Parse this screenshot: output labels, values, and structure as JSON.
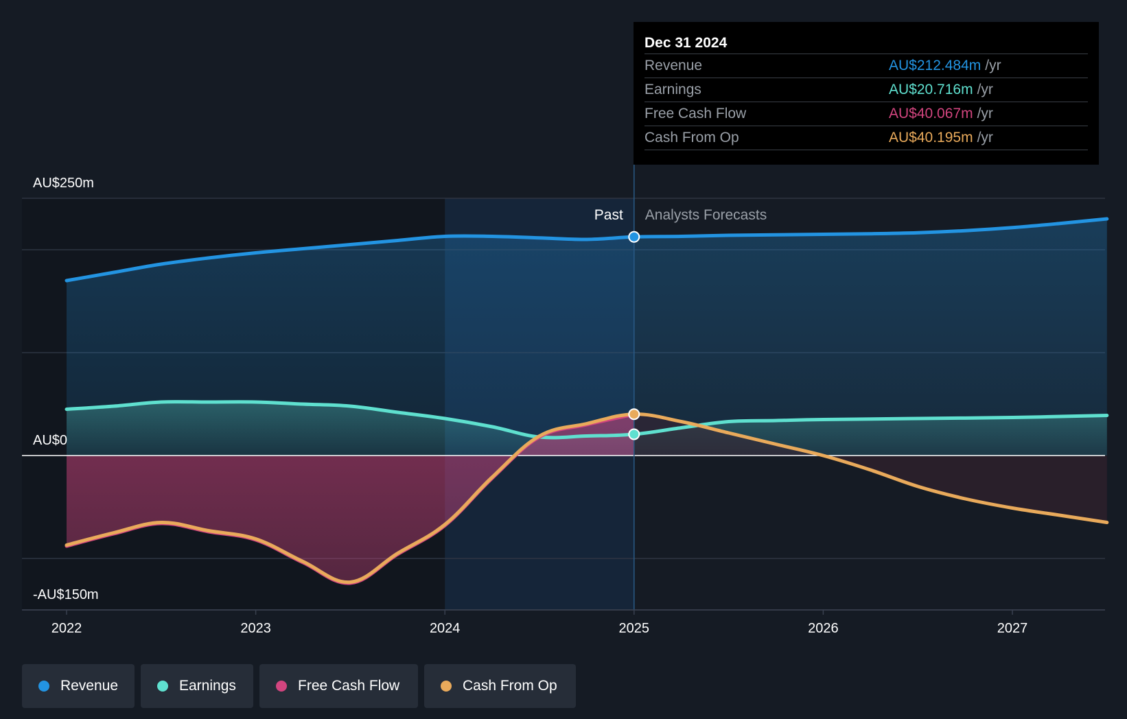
{
  "colors": {
    "revenue": "#2394e2",
    "earnings": "#5fe0cf",
    "free_cash_flow": "#d2457f",
    "cash_from_op": "#e9aa5b",
    "grid": "#2e3542",
    "zero_line": "#ffffff"
  },
  "tooltip": {
    "date": "Dec 31 2024",
    "rows": [
      {
        "name": "Revenue",
        "value": "AU$212.484m",
        "unit": "/yr",
        "color": "#2394e2"
      },
      {
        "name": "Earnings",
        "value": "AU$20.716m",
        "unit": "/yr",
        "color": "#5fe0cf"
      },
      {
        "name": "Free Cash Flow",
        "value": "AU$40.067m",
        "unit": "/yr",
        "color": "#d2457f"
      },
      {
        "name": "Cash From Op",
        "value": "AU$40.195m",
        "unit": "/yr",
        "color": "#e9aa5b"
      }
    ]
  },
  "legend": [
    {
      "label": "Revenue",
      "color": "#2394e2"
    },
    {
      "label": "Earnings",
      "color": "#5fe0cf"
    },
    {
      "label": "Free Cash Flow",
      "color": "#d2457f"
    },
    {
      "label": "Cash From Op",
      "color": "#e9aa5b"
    }
  ],
  "chart_data": {
    "type": "area",
    "title": "",
    "y_labels": {
      "top": "AU$250m",
      "zero": "AU$0",
      "bottom": "-AU$150m"
    },
    "ylim": [
      -150,
      250
    ],
    "xlim": [
      2021.77,
      2027.5
    ],
    "x_ticks": [
      2022,
      2023,
      2024,
      2025,
      2026,
      2027
    ],
    "x_tick_labels": [
      "2022",
      "2023",
      "2024",
      "2025",
      "2026",
      "2027"
    ],
    "past_label": "Past",
    "forecast_label": "Analysts Forecasts",
    "past_end": 2025.0,
    "highlight_start": 2024.0,
    "series": [
      {
        "name": "Revenue",
        "x": [
          2022.0,
          2022.25,
          2022.5,
          2022.75,
          2023.0,
          2023.25,
          2023.5,
          2023.75,
          2024.0,
          2024.25,
          2024.5,
          2024.75,
          2025.0,
          2025.25,
          2025.5,
          2025.75,
          2026.0,
          2026.25,
          2026.5,
          2026.75,
          2027.0,
          2027.25,
          2027.5
        ],
        "values": [
          170,
          178,
          186,
          192,
          197,
          201,
          205,
          209,
          213,
          213,
          211.5,
          210,
          212.5,
          213,
          214,
          214.5,
          215,
          215.5,
          216.5,
          218.5,
          221.5,
          225.5,
          230
        ]
      },
      {
        "name": "Earnings",
        "x": [
          2022.0,
          2022.25,
          2022.5,
          2022.75,
          2023.0,
          2023.25,
          2023.5,
          2023.75,
          2024.0,
          2024.25,
          2024.5,
          2024.75,
          2025.0,
          2025.25,
          2025.5,
          2025.75,
          2026.0,
          2026.5,
          2027.0,
          2027.5
        ],
        "values": [
          45,
          48,
          52,
          52,
          52,
          50,
          48,
          42,
          36,
          28,
          18,
          19,
          20.7,
          27,
          33,
          34,
          35,
          36,
          37,
          39
        ]
      },
      {
        "name": "Free Cash Flow",
        "x": [
          2022.0,
          2022.25,
          2022.5,
          2022.75,
          2023.0,
          2023.25,
          2023.5,
          2023.75,
          2024.0,
          2024.25,
          2024.5,
          2024.75,
          2025.0
        ],
        "values": [
          -88,
          -76,
          -66,
          -74,
          -82,
          -104,
          -124,
          -96,
          -68,
          -22,
          18,
          30,
          40.1
        ]
      },
      {
        "name": "Cash From Op",
        "x": [
          2022.0,
          2022.25,
          2022.5,
          2022.75,
          2023.0,
          2023.25,
          2023.5,
          2023.75,
          2024.0,
          2024.25,
          2024.5,
          2024.75,
          2025.0,
          2025.25,
          2025.5,
          2025.75,
          2026.0,
          2026.25,
          2026.5,
          2026.75,
          2027.0,
          2027.25,
          2027.5
        ],
        "values": [
          -87,
          -75,
          -65,
          -73,
          -81,
          -103,
          -123,
          -95,
          -67,
          -21,
          19,
          31,
          40.2,
          33,
          22,
          11,
          0,
          -14,
          -30,
          -42,
          -51,
          -58,
          -65
        ]
      }
    ],
    "markers": [
      {
        "series": "Revenue",
        "x": 2025.0,
        "y": 212.5
      },
      {
        "series": "Earnings",
        "x": 2025.0,
        "y": 20.7
      },
      {
        "series": "Cash From Op",
        "x": 2025.0,
        "y": 40.2
      }
    ],
    "grid_values": [
      250,
      200,
      100,
      0,
      -100,
      -150
    ]
  }
}
